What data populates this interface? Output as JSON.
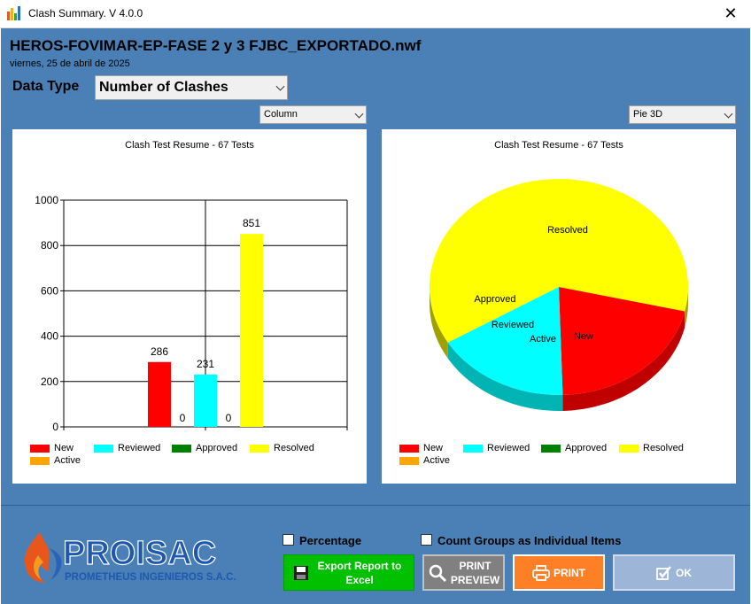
{
  "window": {
    "title": "Clash Summary. V 4.0.0",
    "close_glyph": "✕"
  },
  "header": {
    "file_name": "HEROS-FOVIMAR-EP-FASE 2 y 3 FJBC_EXPORTADO.nwf",
    "date": "viernes, 25 de abril de 2025"
  },
  "data_type": {
    "label": "Data Type",
    "selected": "Number of Clashes"
  },
  "left_chart_type": {
    "selected": "Column"
  },
  "right_chart_type": {
    "selected": "Pie 3D"
  },
  "legend": [
    {
      "label": "New",
      "color": "#ff0000"
    },
    {
      "label": "Reviewed",
      "color": "#00ffff"
    },
    {
      "label": "Approved",
      "color": "#008000"
    },
    {
      "label": "Resolved",
      "color": "#ffff00"
    },
    {
      "label": "Active",
      "color": "#ffa500"
    }
  ],
  "chart_data": [
    {
      "type": "bar",
      "title": "Clash Test Resume - 67 Tests",
      "series": [
        {
          "name": "New",
          "values": [
            286
          ],
          "color": "#ff0000"
        },
        {
          "name": "Active",
          "values": [
            0
          ],
          "color": "#ffa500"
        },
        {
          "name": "Reviewed",
          "values": [
            231
          ],
          "color": "#00ffff"
        },
        {
          "name": "Approved",
          "values": [
            0
          ],
          "color": "#008000"
        },
        {
          "name": "Resolved",
          "values": [
            851
          ],
          "color": "#ffff00"
        }
      ],
      "xlim": [
        0,
        2
      ],
      "xticks": [
        "0",
        "1",
        "2"
      ],
      "ylim": [
        0,
        1000
      ],
      "yticks": [
        "0",
        "200",
        "400",
        "600",
        "800",
        "1000"
      ],
      "grid": true,
      "legend_position": "bottom"
    },
    {
      "type": "pie",
      "title": "Clash Test Resume - 67 Tests",
      "slices": [
        {
          "label": "New",
          "value": 286,
          "color": "#ff0000",
          "side": "#c00000"
        },
        {
          "label": "Active",
          "value": 0,
          "color": "#ffa500",
          "side": "#c07800"
        },
        {
          "label": "Reviewed",
          "value": 231,
          "color": "#00ffff",
          "side": "#00b4b4"
        },
        {
          "label": "Approved",
          "value": 0,
          "color": "#008000",
          "side": "#005000"
        },
        {
          "label": "Resolved",
          "value": 851,
          "color": "#ffff00",
          "side": "#a0a000"
        }
      ],
      "legend_position": "bottom"
    }
  ],
  "options": {
    "percentage": "Percentage",
    "count_groups": "Count Groups as Individual Items"
  },
  "buttons": {
    "export_line1": "Export Report to",
    "export_line2": "Excel",
    "preview_line1": "PRINT",
    "preview_line2": "PREVIEW",
    "print": "PRINT",
    "ok": "OK"
  },
  "logo": {
    "name": "PROISAC",
    "sub": "PROMETHEUS INGENIEROS S.A.C."
  },
  "colors": {
    "background": "#4a80b5",
    "export": "#00c000",
    "preview": "#7f7f7f",
    "print": "#ff7f27",
    "ok": "#9db5d6"
  }
}
